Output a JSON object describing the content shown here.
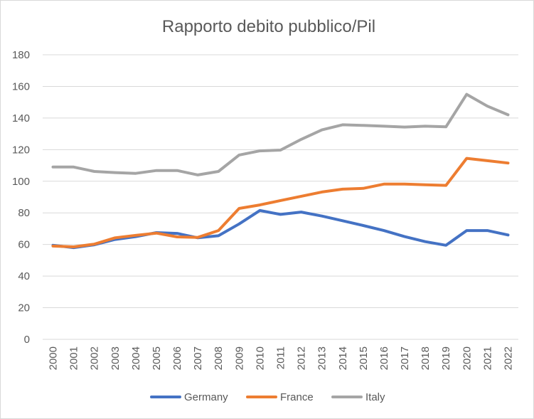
{
  "chart_data": {
    "type": "line",
    "title": "Rapporto debito pubblico/Pil",
    "xlabel": "",
    "ylabel": "",
    "ylim": [
      0,
      180
    ],
    "yticks": [
      0,
      20,
      40,
      60,
      80,
      100,
      120,
      140,
      160,
      180
    ],
    "grid": true,
    "legend_position": "bottom",
    "categories": [
      "2000",
      "2001",
      "2002",
      "2003",
      "2004",
      "2005",
      "2006",
      "2007",
      "2008",
      "2009",
      "2010",
      "2011",
      "2012",
      "2013",
      "2014",
      "2015",
      "2016",
      "2017",
      "2018",
      "2019",
      "2020",
      "2021",
      "2022"
    ],
    "series": [
      {
        "name": "Germany",
        "color": "#4472c4",
        "values": [
          59.5,
          58.0,
          59.8,
          63.2,
          65.0,
          67.5,
          67.0,
          64.2,
          65.5,
          73.0,
          81.5,
          79.0,
          80.5,
          78.0,
          75.0,
          72.0,
          68.8,
          65.0,
          61.8,
          59.5,
          68.8,
          68.8,
          66.0
        ]
      },
      {
        "name": "France",
        "color": "#ed7d31",
        "values": [
          59.0,
          58.5,
          60.2,
          64.2,
          65.8,
          67.2,
          64.8,
          64.5,
          68.8,
          82.8,
          85.0,
          87.8,
          90.5,
          93.2,
          95.0,
          95.5,
          98.2,
          98.2,
          97.8,
          97.4,
          114.5,
          113.0,
          111.5
        ]
      },
      {
        "name": "Italy",
        "color": "#a5a5a5",
        "values": [
          109.0,
          109.0,
          106.2,
          105.5,
          105.0,
          106.8,
          106.8,
          104.0,
          106.2,
          116.6,
          119.2,
          119.7,
          126.5,
          132.5,
          135.7,
          135.3,
          134.8,
          134.3,
          134.8,
          134.4,
          155.0,
          147.5,
          142.0
        ]
      }
    ]
  }
}
